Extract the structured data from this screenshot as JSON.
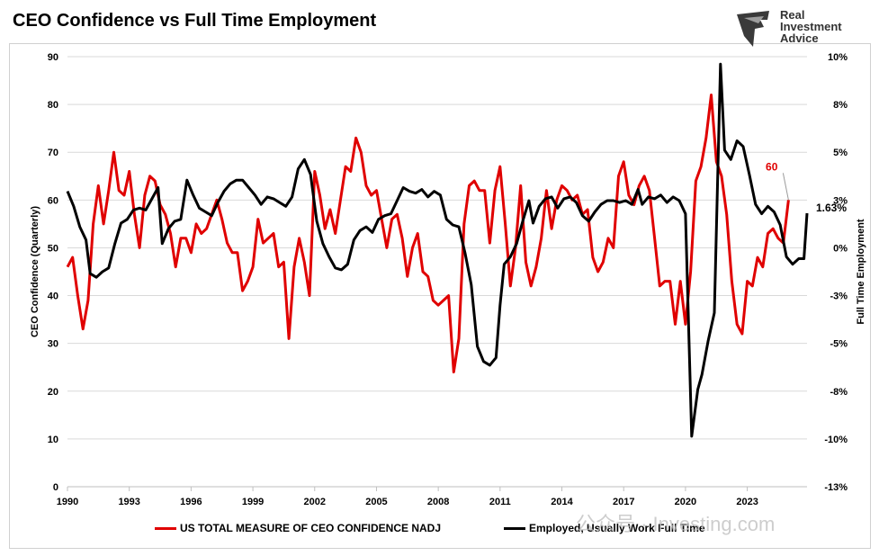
{
  "title": "CEO Confidence vs Full Time Employment",
  "logo": {
    "line1": "Real",
    "line2": "Investment",
    "line3": "Advice"
  },
  "watermark": "公众号 · Investing.com",
  "chart_data": {
    "type": "line",
    "xlabel": "",
    "ylabel_left": "CEO Confidence (Quarterly)",
    "ylabel_right": "Full Time Employment",
    "xlim": [
      1990,
      2025.9
    ],
    "ylim_left": [
      0,
      90
    ],
    "ylim_right": [
      -13,
      10
    ],
    "x_ticks": [
      "1990",
      "1993",
      "1996",
      "1999",
      "2002",
      "2005",
      "2008",
      "2011",
      "2014",
      "2017",
      "2020",
      "2023"
    ],
    "y_left_ticks": [
      "0",
      "10",
      "20",
      "30",
      "40",
      "50",
      "60",
      "70",
      "80",
      "90"
    ],
    "y_right_ticks": [
      "-13%",
      "-10%",
      "-8%",
      "-5%",
      "-3%",
      "0%",
      "3%",
      "5%",
      "8%",
      "10%"
    ],
    "annotations": [
      {
        "text": "60",
        "series": "left",
        "color": "#e00000"
      },
      {
        "text": "1.63%",
        "series": "right",
        "color": "#000000"
      }
    ],
    "series": [
      {
        "name": "US TOTAL MEASURE OF CEO CONFIDENCE NADJ",
        "axis": "left",
        "color": "#e00000",
        "points": [
          [
            1990.0,
            46
          ],
          [
            1990.25,
            48
          ],
          [
            1990.5,
            40
          ],
          [
            1990.75,
            33
          ],
          [
            1991.0,
            39
          ],
          [
            1991.25,
            55
          ],
          [
            1991.5,
            63
          ],
          [
            1991.75,
            55
          ],
          [
            1992.0,
            62
          ],
          [
            1992.25,
            70
          ],
          [
            1992.5,
            62
          ],
          [
            1992.75,
            61
          ],
          [
            1993.0,
            66
          ],
          [
            1993.25,
            57
          ],
          [
            1993.5,
            50
          ],
          [
            1993.75,
            61
          ],
          [
            1994.0,
            65
          ],
          [
            1994.25,
            64
          ],
          [
            1994.5,
            59
          ],
          [
            1994.75,
            57
          ],
          [
            1995.0,
            53
          ],
          [
            1995.25,
            46
          ],
          [
            1995.5,
            52
          ],
          [
            1995.75,
            52
          ],
          [
            1996.0,
            49
          ],
          [
            1996.25,
            55
          ],
          [
            1996.5,
            53
          ],
          [
            1996.75,
            54
          ],
          [
            1997.0,
            57
          ],
          [
            1997.25,
            60
          ],
          [
            1997.5,
            56
          ],
          [
            1997.75,
            51
          ],
          [
            1998.0,
            49
          ],
          [
            1998.25,
            49
          ],
          [
            1998.5,
            41
          ],
          [
            1998.75,
            43
          ],
          [
            1999.0,
            46
          ],
          [
            1999.25,
            56
          ],
          [
            1999.5,
            51
          ],
          [
            1999.75,
            52
          ],
          [
            2000.0,
            53
          ],
          [
            2000.25,
            46
          ],
          [
            2000.5,
            47
          ],
          [
            2000.75,
            31
          ],
          [
            2001.0,
            46
          ],
          [
            2001.25,
            52
          ],
          [
            2001.5,
            47
          ],
          [
            2001.75,
            40
          ],
          [
            2002.0,
            66
          ],
          [
            2002.25,
            61
          ],
          [
            2002.5,
            54
          ],
          [
            2002.75,
            58
          ],
          [
            2003.0,
            53
          ],
          [
            2003.25,
            60
          ],
          [
            2003.5,
            67
          ],
          [
            2003.75,
            66
          ],
          [
            2004.0,
            73
          ],
          [
            2004.25,
            70
          ],
          [
            2004.5,
            63
          ],
          [
            2004.75,
            61
          ],
          [
            2005.0,
            62
          ],
          [
            2005.25,
            56
          ],
          [
            2005.5,
            50
          ],
          [
            2005.75,
            56
          ],
          [
            2006.0,
            57
          ],
          [
            2006.25,
            52
          ],
          [
            2006.5,
            44
          ],
          [
            2006.75,
            50
          ],
          [
            2007.0,
            53
          ],
          [
            2007.25,
            45
          ],
          [
            2007.5,
            44
          ],
          [
            2007.75,
            39
          ],
          [
            2008.0,
            38
          ],
          [
            2008.25,
            39
          ],
          [
            2008.5,
            40
          ],
          [
            2008.75,
            24
          ],
          [
            2009.0,
            31
          ],
          [
            2009.25,
            55
          ],
          [
            2009.5,
            63
          ],
          [
            2009.75,
            64
          ],
          [
            2010.0,
            62
          ],
          [
            2010.25,
            62
          ],
          [
            2010.5,
            51
          ],
          [
            2010.75,
            62
          ],
          [
            2011.0,
            67
          ],
          [
            2011.25,
            55
          ],
          [
            2011.5,
            42
          ],
          [
            2011.75,
            50
          ],
          [
            2012.0,
            63
          ],
          [
            2012.25,
            47
          ],
          [
            2012.5,
            42
          ],
          [
            2012.75,
            46
          ],
          [
            2013.0,
            52
          ],
          [
            2013.25,
            62
          ],
          [
            2013.5,
            54
          ],
          [
            2013.75,
            60
          ],
          [
            2014.0,
            63
          ],
          [
            2014.25,
            62
          ],
          [
            2014.5,
            60
          ],
          [
            2014.75,
            61
          ],
          [
            2015.0,
            57
          ],
          [
            2015.25,
            58
          ],
          [
            2015.5,
            48
          ],
          [
            2015.75,
            45
          ],
          [
            2016.0,
            47
          ],
          [
            2016.25,
            52
          ],
          [
            2016.5,
            50
          ],
          [
            2016.75,
            65
          ],
          [
            2017.0,
            68
          ],
          [
            2017.25,
            61
          ],
          [
            2017.5,
            59
          ],
          [
            2017.75,
            63
          ],
          [
            2018.0,
            65
          ],
          [
            2018.25,
            62
          ],
          [
            2018.5,
            52
          ],
          [
            2018.75,
            42
          ],
          [
            2019.0,
            43
          ],
          [
            2019.25,
            43
          ],
          [
            2019.5,
            34
          ],
          [
            2019.75,
            43
          ],
          [
            2020.0,
            34
          ],
          [
            2020.25,
            45
          ],
          [
            2020.5,
            64
          ],
          [
            2020.75,
            67
          ],
          [
            2021.0,
            73
          ],
          [
            2021.25,
            82
          ],
          [
            2021.5,
            68
          ],
          [
            2021.75,
            65
          ],
          [
            2022.0,
            57
          ],
          [
            2022.25,
            43
          ],
          [
            2022.5,
            34
          ],
          [
            2022.75,
            32
          ],
          [
            2023.0,
            43
          ],
          [
            2023.25,
            42
          ],
          [
            2023.5,
            48
          ],
          [
            2023.75,
            46
          ],
          [
            2024.0,
            53
          ],
          [
            2024.25,
            54
          ],
          [
            2024.5,
            52
          ],
          [
            2024.75,
            51
          ],
          [
            2025.0,
            60
          ]
        ]
      },
      {
        "name": "Employed, Usually Work Full Time",
        "axis": "right",
        "color": "#000000",
        "points": [
          [
            1990.0,
            2.8
          ],
          [
            1990.3,
            2.0
          ],
          [
            1990.6,
            0.9
          ],
          [
            1990.9,
            0.2
          ],
          [
            1991.1,
            -1.6
          ],
          [
            1991.4,
            -1.8
          ],
          [
            1991.7,
            -1.5
          ],
          [
            1992.0,
            -1.3
          ],
          [
            1992.3,
            0.0
          ],
          [
            1992.6,
            1.1
          ],
          [
            1992.9,
            1.3
          ],
          [
            1993.2,
            1.8
          ],
          [
            1993.5,
            1.9
          ],
          [
            1993.8,
            1.8
          ],
          [
            1994.1,
            2.4
          ],
          [
            1994.4,
            3.0
          ],
          [
            1994.6,
            0.0
          ],
          [
            1994.9,
            0.8
          ],
          [
            1995.2,
            1.2
          ],
          [
            1995.5,
            1.3
          ],
          [
            1995.8,
            3.4
          ],
          [
            1996.1,
            2.6
          ],
          [
            1996.4,
            1.9
          ],
          [
            1996.7,
            1.7
          ],
          [
            1997.0,
            1.5
          ],
          [
            1997.3,
            2.2
          ],
          [
            1997.6,
            2.8
          ],
          [
            1997.9,
            3.2
          ],
          [
            1998.2,
            3.4
          ],
          [
            1998.5,
            3.4
          ],
          [
            1998.8,
            3.0
          ],
          [
            1999.1,
            2.6
          ],
          [
            1999.4,
            2.1
          ],
          [
            1999.7,
            2.5
          ],
          [
            2000.0,
            2.4
          ],
          [
            2000.3,
            2.2
          ],
          [
            2000.6,
            2.0
          ],
          [
            2000.9,
            2.5
          ],
          [
            2001.2,
            4.0
          ],
          [
            2001.5,
            4.5
          ],
          [
            2001.8,
            3.7
          ],
          [
            2002.1,
            1.2
          ],
          [
            2002.4,
            0.0
          ],
          [
            2002.7,
            -0.7
          ],
          [
            2003.0,
            -1.3
          ],
          [
            2003.3,
            -1.4
          ],
          [
            2003.6,
            -1.1
          ],
          [
            2003.9,
            0.2
          ],
          [
            2004.2,
            0.7
          ],
          [
            2004.5,
            0.9
          ],
          [
            2004.8,
            0.6
          ],
          [
            2005.1,
            1.3
          ],
          [
            2005.4,
            1.5
          ],
          [
            2005.7,
            1.6
          ],
          [
            2006.0,
            2.3
          ],
          [
            2006.3,
            3.0
          ],
          [
            2006.6,
            2.8
          ],
          [
            2006.9,
            2.7
          ],
          [
            2007.2,
            2.9
          ],
          [
            2007.5,
            2.5
          ],
          [
            2007.8,
            2.8
          ],
          [
            2008.1,
            2.6
          ],
          [
            2008.4,
            1.3
          ],
          [
            2008.7,
            1.0
          ],
          [
            2009.0,
            0.9
          ],
          [
            2009.3,
            -0.5
          ],
          [
            2009.6,
            -2.2
          ],
          [
            2009.9,
            -5.5
          ],
          [
            2010.2,
            -6.3
          ],
          [
            2010.5,
            -6.5
          ],
          [
            2010.8,
            -6.1
          ],
          [
            2011.0,
            -3.3
          ],
          [
            2011.2,
            -1.1
          ],
          [
            2011.5,
            -0.7
          ],
          [
            2011.8,
            0.0
          ],
          [
            2012.1,
            1.2
          ],
          [
            2012.4,
            2.3
          ],
          [
            2012.6,
            1.1
          ],
          [
            2012.9,
            2.0
          ],
          [
            2013.2,
            2.4
          ],
          [
            2013.5,
            2.5
          ],
          [
            2013.8,
            1.9
          ],
          [
            2014.1,
            2.4
          ],
          [
            2014.4,
            2.5
          ],
          [
            2014.7,
            2.2
          ],
          [
            2015.0,
            1.5
          ],
          [
            2015.3,
            1.2
          ],
          [
            2015.6,
            1.7
          ],
          [
            2015.9,
            2.1
          ],
          [
            2016.2,
            2.3
          ],
          [
            2016.5,
            2.3
          ],
          [
            2016.8,
            2.2
          ],
          [
            2017.1,
            2.3
          ],
          [
            2017.4,
            2.1
          ],
          [
            2017.7,
            2.9
          ],
          [
            2017.9,
            2.1
          ],
          [
            2018.2,
            2.5
          ],
          [
            2018.5,
            2.4
          ],
          [
            2018.8,
            2.6
          ],
          [
            2019.1,
            2.2
          ],
          [
            2019.4,
            2.5
          ],
          [
            2019.7,
            2.3
          ],
          [
            2020.0,
            1.6
          ],
          [
            2020.3,
            -10.3
          ],
          [
            2020.6,
            -7.8
          ],
          [
            2020.8,
            -7.0
          ],
          [
            2021.1,
            -5.2
          ],
          [
            2021.4,
            -3.7
          ],
          [
            2021.7,
            9.6
          ],
          [
            2021.9,
            5.0
          ],
          [
            2022.2,
            4.5
          ],
          [
            2022.5,
            5.5
          ],
          [
            2022.8,
            5.2
          ],
          [
            2023.1,
            3.7
          ],
          [
            2023.4,
            2.1
          ],
          [
            2023.7,
            1.6
          ],
          [
            2024.0,
            2.0
          ],
          [
            2024.3,
            1.7
          ],
          [
            2024.6,
            1.0
          ],
          [
            2024.9,
            -0.7
          ],
          [
            2025.2,
            -1.1
          ],
          [
            2025.5,
            -0.8
          ],
          [
            2025.75,
            -0.8
          ],
          [
            2025.9,
            1.63
          ]
        ]
      }
    ]
  },
  "legend": {
    "item1": "US TOTAL MEASURE OF CEO CONFIDENCE NADJ",
    "item2": "Employed, Usually Work Full Time"
  }
}
